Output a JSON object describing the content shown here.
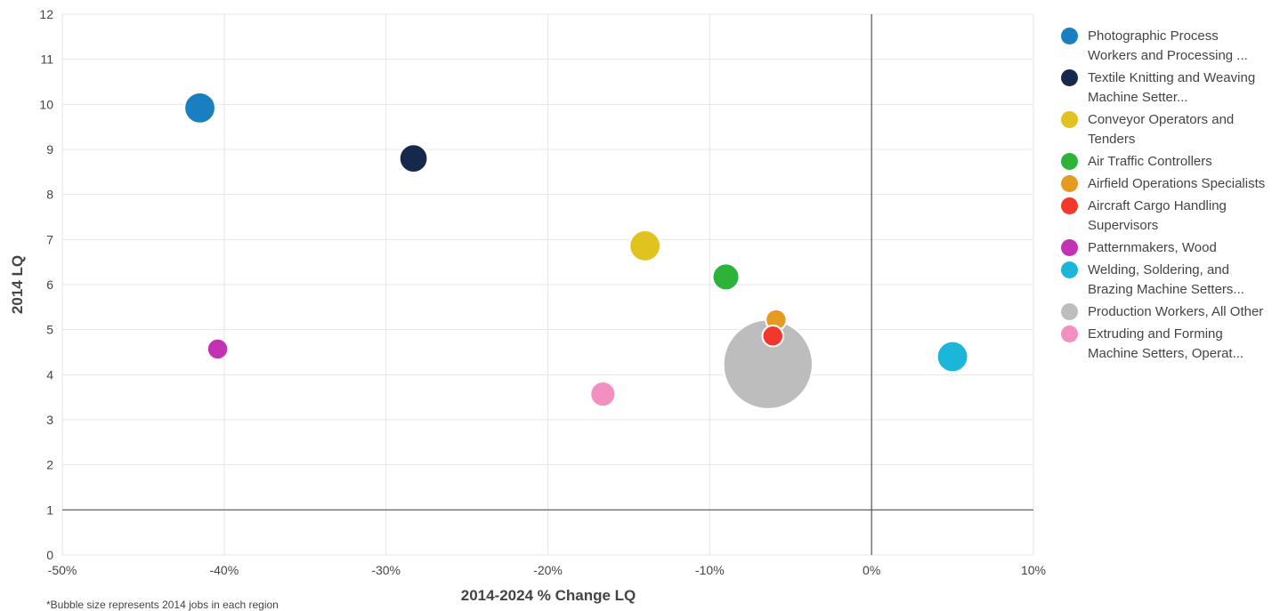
{
  "chart_data": {
    "type": "scatter",
    "subtype": "bubble",
    "xlabel": "2014-2024 % Change LQ",
    "ylabel": "2014 LQ",
    "xlim": [
      -50,
      10
    ],
    "ylim": [
      0,
      12
    ],
    "x_ticks": [
      "-50%",
      "-40%",
      "-30%",
      "-20%",
      "-10%",
      "0%",
      "10%"
    ],
    "y_ticks": [
      "0",
      "1",
      "2",
      "3",
      "4",
      "5",
      "6",
      "7",
      "8",
      "9",
      "10",
      "11",
      "12"
    ],
    "grid": true,
    "reference_lines": {
      "x": 0,
      "y": 1
    },
    "legend_position": "right",
    "series": [
      {
        "name": "Photographic Process Workers and Processing ...",
        "color": "#1a7fc1",
        "x": -41.5,
        "y": 9.92,
        "size": 4
      },
      {
        "name": "Textile Knitting and Weaving Machine Setter...",
        "color": "#17284d",
        "x": -28.3,
        "y": 8.8,
        "size": 3
      },
      {
        "name": "Conveyor Operators and Tenders",
        "color": "#e0c31e",
        "x": -14.0,
        "y": 6.86,
        "size": 4
      },
      {
        "name": "Air Traffic Controllers",
        "color": "#2db33a",
        "x": -9.0,
        "y": 6.17,
        "size": 2.5
      },
      {
        "name": "Airfield Operations Specialists",
        "color": "#e59a22",
        "x": -5.9,
        "y": 5.22,
        "size": 1
      },
      {
        "name": "Aircraft Cargo Handling Supervisors",
        "color": "#f2372c",
        "x": -6.1,
        "y": 4.86,
        "size": 1
      },
      {
        "name": "Patternmakers, Wood",
        "color": "#c233b4",
        "x": -40.4,
        "y": 4.57,
        "size": 1
      },
      {
        "name": "Welding, Soldering, and Brazing Machine Setters...",
        "color": "#1bb6d9",
        "x": 5.0,
        "y": 4.4,
        "size": 4
      },
      {
        "name": "Production Workers, All Other",
        "color": "#bdbdbd",
        "x": -6.4,
        "y": 4.23,
        "size": 60
      },
      {
        "name": "Extruding and Forming Machine Setters, Operat...",
        "color": "#f48fc1",
        "x": -16.6,
        "y": 3.57,
        "size": 2
      }
    ]
  },
  "footnote": "*Bubble size represents 2014 jobs in each region"
}
